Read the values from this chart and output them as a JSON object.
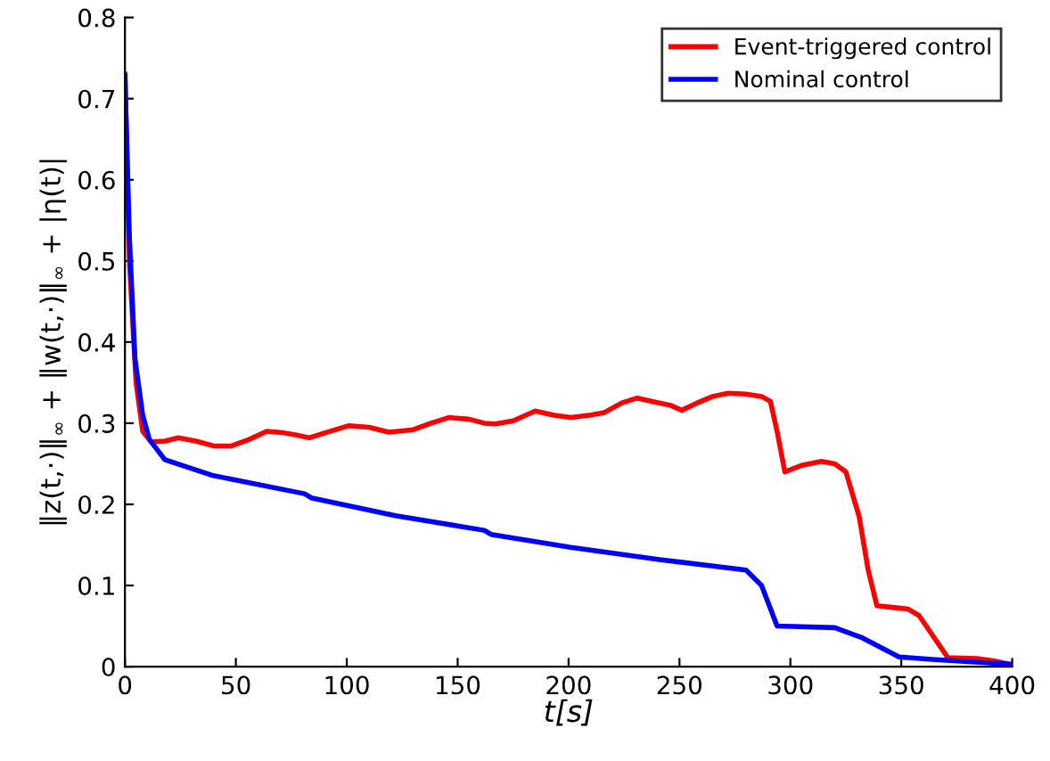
{
  "chart_data": {
    "type": "line",
    "xlabel": "t[s]",
    "ylabel": "‖z(t,·)‖$_{∞}$ + ‖w(t,·)‖$_{∞}$ + |η(t)|",
    "xlim": [
      0,
      400
    ],
    "ylim": [
      0,
      0.8
    ],
    "xticks": [
      0,
      50,
      100,
      150,
      200,
      250,
      300,
      350,
      400
    ],
    "yticks": [
      0,
      0.1,
      0.2,
      0.3,
      0.4,
      0.5,
      0.6,
      0.7,
      0.8
    ],
    "legend": "top right",
    "grid": false,
    "line_style": "solid",
    "marker": "none",
    "series": [
      {
        "name": "Event-triggered control",
        "color": "#ff0000",
        "x": [
          0,
          2,
          5,
          8,
          11.8,
          18,
          24,
          32,
          40,
          48,
          56,
          64,
          72,
          78,
          83,
          90,
          101,
          110,
          119,
          130,
          138,
          146,
          155,
          162,
          167,
          175,
          185,
          193,
          201,
          210,
          216,
          224,
          231,
          239,
          246,
          251,
          258,
          265,
          272,
          280,
          287,
          291,
          294,
          297.5,
          305,
          314,
          320,
          325,
          331,
          335,
          339,
          346,
          353,
          358,
          365,
          371,
          384,
          392,
          399
        ],
        "values": [
          0.73,
          0.5,
          0.35,
          0.29,
          0.277,
          0.278,
          0.282,
          0.278,
          0.272,
          0.272,
          0.28,
          0.29,
          0.288,
          0.285,
          0.282,
          0.288,
          0.297,
          0.295,
          0.289,
          0.292,
          0.3,
          0.307,
          0.305,
          0.3,
          0.299,
          0.303,
          0.315,
          0.31,
          0.307,
          0.31,
          0.313,
          0.325,
          0.331,
          0.326,
          0.322,
          0.316,
          0.325,
          0.333,
          0.337,
          0.336,
          0.333,
          0.327,
          0.29,
          0.24,
          0.248,
          0.253,
          0.25,
          0.24,
          0.185,
          0.12,
          0.075,
          0.073,
          0.071,
          0.063,
          0.035,
          0.011,
          0.01,
          0.007,
          0.003
        ]
      },
      {
        "name": "Nominal control",
        "color": "#0000ff",
        "x": [
          0,
          2,
          4.5,
          8,
          11,
          18,
          39,
          81,
          84,
          122,
          162,
          165,
          201,
          241,
          280,
          287,
          294,
          320,
          332,
          349,
          364,
          399
        ],
        "values": [
          0.728,
          0.53,
          0.38,
          0.31,
          0.28,
          0.255,
          0.236,
          0.213,
          0.208,
          0.186,
          0.168,
          0.163,
          0.147,
          0.132,
          0.119,
          0.1,
          0.05,
          0.048,
          0.036,
          0.012,
          0.009,
          0.003
        ]
      }
    ]
  }
}
